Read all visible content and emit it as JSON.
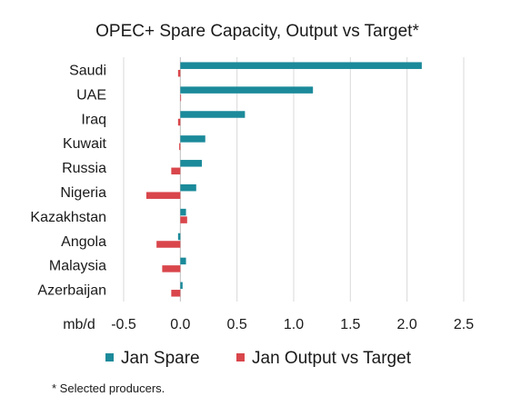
{
  "chart_data": {
    "type": "bar",
    "orientation": "horizontal",
    "title": "OPEC+ Spare Capacity, Output vs Target*",
    "xlabel": "mb/d",
    "ylabel": "",
    "categories": [
      "Saudi",
      "UAE",
      "Iraq",
      "Kuwait",
      "Russia",
      "Nigeria",
      "Kazakhstan",
      "Angola",
      "Malaysia",
      "Azerbaijan"
    ],
    "series": [
      {
        "name": "Jan Spare",
        "color": "#1b8a9a",
        "values": [
          2.13,
          1.17,
          0.57,
          0.22,
          0.19,
          0.14,
          0.05,
          -0.02,
          0.05,
          0.02
        ]
      },
      {
        "name": "Jan Output vs Target",
        "color": "#d9464b",
        "values": [
          -0.02,
          0.0,
          -0.02,
          -0.01,
          -0.08,
          -0.3,
          0.06,
          -0.21,
          -0.16,
          -0.08
        ]
      }
    ],
    "xlim": [
      -0.5,
      2.5
    ],
    "xticks": [
      -0.5,
      0.0,
      0.5,
      1.0,
      1.5,
      2.0,
      2.5
    ],
    "xtick_labels": [
      "-0.5",
      "0.0",
      "0.5",
      "1.0",
      "1.5",
      "2.0",
      "2.5"
    ],
    "grid": true,
    "legend_position": "bottom",
    "footnote": "* Selected producers."
  }
}
